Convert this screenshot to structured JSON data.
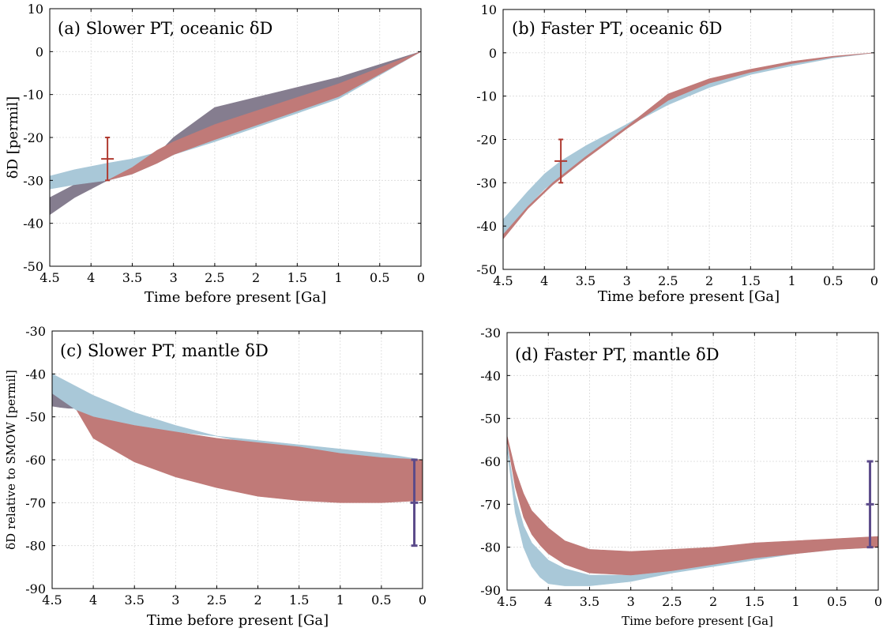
{
  "colors": {
    "blue_band": "#a9c8d8",
    "red_band": "#c07a78",
    "overlap_band": "#857d8f",
    "red_errorbar": "#b03a30",
    "purple_errorbar": "#5b4a8a"
  },
  "chart_data": [
    {
      "id": "a",
      "type": "area",
      "title": "(a) Slower PT, oceanic δD",
      "xlabel": "Time before present [Ga]",
      "ylabel": "δD  [permil]",
      "xlim": [
        4.5,
        0
      ],
      "ylim": [
        -50,
        10
      ],
      "xticks": [
        4.5,
        4,
        3.5,
        3,
        2.5,
        2,
        1.5,
        1,
        0.5,
        0
      ],
      "xtick_labels": [
        "4.5",
        "4",
        "3.5",
        "3",
        "2.5",
        "2",
        "1.5",
        "1",
        "0.5",
        "0"
      ],
      "yticks": [
        10,
        0,
        -10,
        -20,
        -30,
        -40,
        -50
      ],
      "ytick_labels": [
        "10",
        "0",
        "-10",
        "-20",
        "-30",
        "-40",
        "-50"
      ],
      "grid": true,
      "series": [
        {
          "name": "overlap band",
          "color_key": "overlap_band",
          "upper": [
            [
              4.5,
              -34
            ],
            [
              4.2,
              -31
            ],
            [
              3.8,
              -29.5
            ],
            [
              3.5,
              -28
            ],
            [
              3.2,
              -24
            ],
            [
              3,
              -20
            ],
            [
              2.5,
              -13
            ],
            [
              1,
              -6
            ],
            [
              0,
              0
            ]
          ],
          "lower": [
            [
              4.5,
              -38
            ],
            [
              4.2,
              -34
            ],
            [
              3.8,
              -30
            ],
            [
              3.5,
              -28.5
            ],
            [
              3.2,
              -25.5
            ],
            [
              3,
              -22
            ],
            [
              2.5,
              -19
            ],
            [
              1,
              -10
            ],
            [
              0,
              0
            ]
          ]
        },
        {
          "name": "blue band",
          "color_key": "blue_band",
          "upper": [
            [
              4.5,
              -29
            ],
            [
              4.2,
              -27.5
            ],
            [
              3.8,
              -26
            ],
            [
              3.5,
              -25
            ],
            [
              3.1,
              -23
            ],
            [
              2.8,
              -20
            ],
            [
              2.5,
              -18
            ],
            [
              1,
              -8
            ],
            [
              0,
              0
            ]
          ],
          "lower": [
            [
              4.5,
              -32
            ],
            [
              4.2,
              -31
            ],
            [
              3.8,
              -30
            ],
            [
              3.5,
              -28.5
            ],
            [
              3.2,
              -26
            ],
            [
              3,
              -24
            ],
            [
              2.5,
              -21
            ],
            [
              1,
              -11
            ],
            [
              0,
              0
            ]
          ]
        },
        {
          "name": "red band",
          "color_key": "red_band",
          "upper": [
            [
              3.8,
              -30
            ],
            [
              3.5,
              -27
            ],
            [
              3.2,
              -23
            ],
            [
              3,
              -21
            ],
            [
              2.5,
              -17
            ],
            [
              1,
              -7.5
            ],
            [
              0,
              0
            ]
          ],
          "lower": [
            [
              3.8,
              -30
            ],
            [
              3.5,
              -28.5
            ],
            [
              3.2,
              -26
            ],
            [
              3,
              -24
            ],
            [
              2.5,
              -20.5
            ],
            [
              1,
              -10.5
            ],
            [
              0,
              0
            ]
          ]
        }
      ],
      "error_bars": [
        {
          "x": 3.8,
          "y": -25,
          "ylow": -30,
          "yhigh": -20,
          "color_key": "red_errorbar"
        }
      ]
    },
    {
      "id": "b",
      "type": "area",
      "title": "(b) Faster PT, oceanic δD",
      "xlabel": "Time before present [Ga]",
      "ylabel": "",
      "xlim": [
        4.5,
        0
      ],
      "ylim": [
        -50,
        10
      ],
      "xticks": [
        4.5,
        4,
        3.5,
        3,
        2.5,
        2,
        1.5,
        1,
        0.5,
        0
      ],
      "xtick_labels": [
        "4.5",
        "4",
        "3.5",
        "3",
        "2.5",
        "2",
        "1.5",
        "1",
        "0.5",
        "0"
      ],
      "yticks": [
        10,
        0,
        -10,
        -20,
        -30,
        -40,
        -50
      ],
      "ytick_labels": [
        "10",
        "0",
        "-10",
        "-20",
        "-30",
        "-40",
        "-50"
      ],
      "grid": true,
      "series": [
        {
          "name": "blue band",
          "color_key": "blue_band",
          "upper": [
            [
              4.5,
              -38.5
            ],
            [
              4.2,
              -32
            ],
            [
              4,
              -28
            ],
            [
              3.8,
              -25
            ],
            [
              3.5,
              -21.5
            ],
            [
              3,
              -16.5
            ],
            [
              2.5,
              -11
            ],
            [
              2,
              -7
            ],
            [
              1.5,
              -4.5
            ],
            [
              1,
              -2.5
            ],
            [
              0.5,
              -1
            ],
            [
              0,
              0
            ]
          ],
          "lower": [
            [
              4.5,
              -42
            ],
            [
              4.2,
              -35.5
            ],
            [
              4,
              -31.5
            ],
            [
              3.8,
              -28.5
            ],
            [
              3.5,
              -24
            ],
            [
              3,
              -17
            ],
            [
              2.5,
              -12
            ],
            [
              2,
              -8
            ],
            [
              1.5,
              -5
            ],
            [
              1,
              -3
            ],
            [
              0.5,
              -1.2
            ],
            [
              0,
              0
            ]
          ]
        },
        {
          "name": "red band",
          "color_key": "red_band",
          "upper": [
            [
              4.5,
              -42
            ],
            [
              4.2,
              -35.5
            ],
            [
              3.9,
              -30
            ],
            [
              3.5,
              -24
            ],
            [
              3,
              -17
            ],
            [
              2.5,
              -9.5
            ],
            [
              2,
              -6
            ],
            [
              1.5,
              -3.8
            ],
            [
              1,
              -2
            ],
            [
              0.5,
              -0.8
            ],
            [
              0,
              0
            ]
          ],
          "lower": [
            [
              4.5,
              -43
            ],
            [
              4.2,
              -36
            ],
            [
              3.9,
              -30.5
            ],
            [
              3.5,
              -24.5
            ],
            [
              3,
              -17.5
            ],
            [
              2.5,
              -11
            ],
            [
              2,
              -7
            ],
            [
              1.5,
              -4.5
            ],
            [
              1,
              -2.5
            ],
            [
              0.5,
              -1
            ],
            [
              0,
              0
            ]
          ]
        }
      ],
      "error_bars": [
        {
          "x": 3.8,
          "y": -25,
          "ylow": -30,
          "yhigh": -20,
          "color_key": "red_errorbar"
        }
      ]
    },
    {
      "id": "c",
      "type": "area",
      "title": "(c) Slower PT, mantle δD",
      "xlabel": "Time before present [Ga]",
      "ylabel": "δD relative to SMOW [permil]",
      "xlim": [
        4.5,
        0
      ],
      "ylim": [
        -90,
        -30
      ],
      "xticks": [
        4.5,
        4,
        3.5,
        3,
        2.5,
        2,
        1.5,
        1,
        0.5,
        0
      ],
      "xtick_labels": [
        "4.5",
        "4",
        "3.5",
        "3",
        "2.5",
        "2",
        "1.5",
        "1",
        "0.5",
        "0"
      ],
      "yticks": [
        -30,
        -40,
        -50,
        -60,
        -70,
        -80,
        -90
      ],
      "ytick_labels": [
        "-30",
        "-40",
        "-50",
        "-60",
        "-70",
        "-80",
        "-90"
      ],
      "grid": true,
      "series": [
        {
          "name": "overlap band",
          "color_key": "overlap_band",
          "upper": [
            [
              4.5,
              -44
            ],
            [
              4.4,
              -45.5
            ],
            [
              4.3,
              -47
            ],
            [
              4.2,
              -48
            ]
          ],
          "lower": [
            [
              4.5,
              -47.5
            ],
            [
              4.4,
              -47.8
            ],
            [
              4.3,
              -48
            ],
            [
              4.2,
              -48
            ]
          ]
        },
        {
          "name": "blue band",
          "color_key": "blue_band",
          "upper": [
            [
              4.5,
              -40
            ],
            [
              4,
              -45
            ],
            [
              3.5,
              -49
            ],
            [
              3,
              -52
            ],
            [
              2.5,
              -54.5
            ],
            [
              2,
              -56.5
            ],
            [
              1.5,
              -58
            ],
            [
              1,
              -59
            ],
            [
              0.5,
              -59.5
            ],
            [
              0,
              -60
            ]
          ],
          "lower": [
            [
              4.5,
              -44.5
            ],
            [
              4.2,
              -48.5
            ],
            [
              4,
              -50
            ],
            [
              3.5,
              -52
            ],
            [
              3,
              -53.5
            ],
            [
              2.5,
              -54.5
            ],
            [
              2,
              -55.5
            ],
            [
              1.5,
              -56.5
            ],
            [
              1,
              -57.5
            ],
            [
              0.5,
              -58.5
            ],
            [
              0,
              -60
            ]
          ]
        },
        {
          "name": "red band",
          "color_key": "red_band",
          "upper": [
            [
              4.2,
              -48.5
            ],
            [
              4,
              -50
            ],
            [
              3.5,
              -52
            ],
            [
              3,
              -53.5
            ],
            [
              2.5,
              -55
            ],
            [
              2,
              -56
            ],
            [
              1.5,
              -57
            ],
            [
              1,
              -58.5
            ],
            [
              0.5,
              -59.5
            ],
            [
              0,
              -60
            ]
          ],
          "lower": [
            [
              4.2,
              -48.5
            ],
            [
              4,
              -55
            ],
            [
              3.5,
              -60.5
            ],
            [
              3,
              -64
            ],
            [
              2.5,
              -66.5
            ],
            [
              2,
              -68.5
            ],
            [
              1.5,
              -69.5
            ],
            [
              1,
              -70
            ],
            [
              0.5,
              -70
            ],
            [
              0,
              -69.5
            ]
          ]
        }
      ],
      "error_bars": [
        {
          "x": 0.1,
          "y": -70,
          "ylow": -80,
          "yhigh": -60,
          "color_key": "purple_errorbar"
        }
      ]
    },
    {
      "id": "d",
      "type": "area",
      "title": "(d) Faster PT, mantle δD",
      "xlabel": "Time before present [Ga]",
      "ylabel": "",
      "xlim": [
        4.5,
        0
      ],
      "ylim": [
        -90,
        -30
      ],
      "xticks": [
        4.5,
        4,
        3.5,
        3,
        2.5,
        2,
        1.5,
        1,
        0.5,
        0
      ],
      "xtick_labels": [
        "4.5",
        "4",
        "3.5",
        "3",
        "2.5",
        "2",
        "1.5",
        "1",
        "0.5",
        "0"
      ],
      "yticks": [
        -30,
        -40,
        -50,
        -60,
        -70,
        -80,
        -90
      ],
      "ytick_labels": [
        "-30",
        "-40",
        "-50",
        "-60",
        "-70",
        "-80",
        "-90"
      ],
      "grid": true,
      "series": [
        {
          "name": "blue band",
          "color_key": "blue_band",
          "upper": [
            [
              4.5,
              -56
            ],
            [
              4.4,
              -68
            ],
            [
              4.3,
              -75
            ],
            [
              4.2,
              -79
            ],
            [
              4,
              -83
            ],
            [
              3.8,
              -85
            ],
            [
              3.5,
              -86.5
            ],
            [
              3,
              -86.5
            ],
            [
              2.5,
              -85.5
            ],
            [
              2,
              -84
            ],
            [
              1.5,
              -82.5
            ],
            [
              1,
              -81.5
            ],
            [
              0.5,
              -80.5
            ],
            [
              0,
              -80
            ]
          ],
          "lower": [
            [
              4.5,
              -57
            ],
            [
              4.4,
              -72
            ],
            [
              4.3,
              -80
            ],
            [
              4.2,
              -84.5
            ],
            [
              4.1,
              -87
            ],
            [
              4,
              -88.5
            ],
            [
              3.8,
              -89
            ],
            [
              3.5,
              -89
            ],
            [
              3,
              -88
            ],
            [
              2.5,
              -86
            ],
            [
              2,
              -84.5
            ],
            [
              1.5,
              -83
            ],
            [
              1,
              -81.5
            ],
            [
              0.5,
              -80.5
            ],
            [
              0,
              -80
            ]
          ]
        },
        {
          "name": "red band",
          "color_key": "red_band",
          "upper": [
            [
              4.5,
              -54
            ],
            [
              4.4,
              -62
            ],
            [
              4.3,
              -67.5
            ],
            [
              4.2,
              -71.5
            ],
            [
              4,
              -75.5
            ],
            [
              3.8,
              -78.5
            ],
            [
              3.5,
              -80.5
            ],
            [
              3,
              -81
            ],
            [
              2.5,
              -80.5
            ],
            [
              2,
              -80
            ],
            [
              1.5,
              -79
            ],
            [
              1,
              -78.5
            ],
            [
              0.5,
              -78
            ],
            [
              0,
              -77.5
            ]
          ],
          "lower": [
            [
              4.5,
              -55
            ],
            [
              4.4,
              -66
            ],
            [
              4.3,
              -73
            ],
            [
              4.2,
              -77
            ],
            [
              4.1,
              -79.5
            ],
            [
              4,
              -81.5
            ],
            [
              3.8,
              -84
            ],
            [
              3.5,
              -86
            ],
            [
              3,
              -86.5
            ],
            [
              2.5,
              -85.5
            ],
            [
              2,
              -84
            ],
            [
              1.5,
              -82.5
            ],
            [
              1,
              -81.5
            ],
            [
              0.5,
              -80.5
            ],
            [
              0,
              -80
            ]
          ]
        }
      ],
      "error_bars": [
        {
          "x": 0.1,
          "y": -70,
          "ylow": -80,
          "yhigh": -60,
          "color_key": "purple_errorbar"
        }
      ]
    }
  ]
}
